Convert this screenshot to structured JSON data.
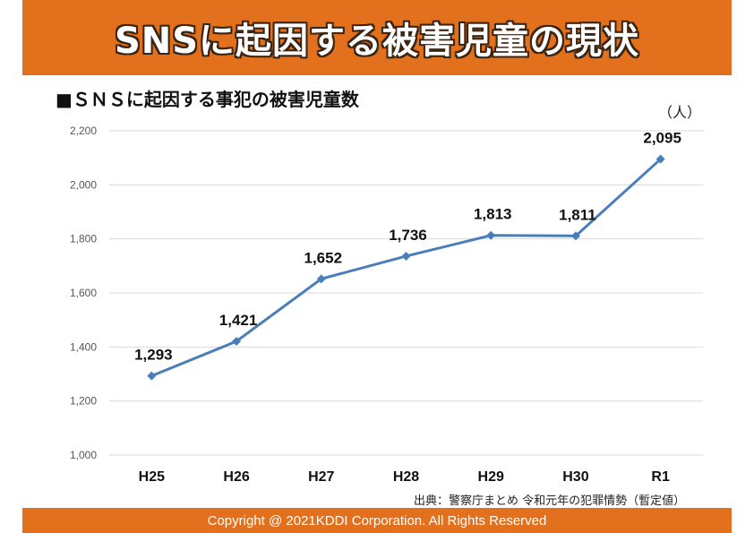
{
  "header": {
    "title": "SNSに起因する被害児童の現状",
    "subtitle": "■ＳＮＳに起因する事犯の被害児童数",
    "unit": "（人）"
  },
  "source": "出典：警察庁まとめ 令和元年の犯罪情勢（暫定値）",
  "footer": "Copyright @ 2021KDDI Corporation. All Rights Reserved",
  "colors": {
    "banner": "#e2701c",
    "line": "#4a7ebb"
  },
  "chart_data": {
    "type": "line",
    "categories": [
      "H25",
      "H26",
      "H27",
      "H28",
      "H29",
      "H30",
      "R1"
    ],
    "series": [
      {
        "values": [
          1293,
          1421,
          1652,
          1736,
          1813,
          1811,
          2095
        ],
        "labels": [
          "1,293",
          "1,421",
          "1,652",
          "1,736",
          "1,813",
          "1,811",
          "2,095"
        ]
      }
    ],
    "ylim": [
      1000,
      2200
    ],
    "yticks": [
      1000,
      1200,
      1400,
      1600,
      1800,
      2000,
      2200
    ],
    "ytick_labels": [
      "1,000",
      "1,200",
      "1,400",
      "1,600",
      "1,800",
      "2,000",
      "2,200"
    ],
    "grid": true,
    "legend": "none"
  }
}
